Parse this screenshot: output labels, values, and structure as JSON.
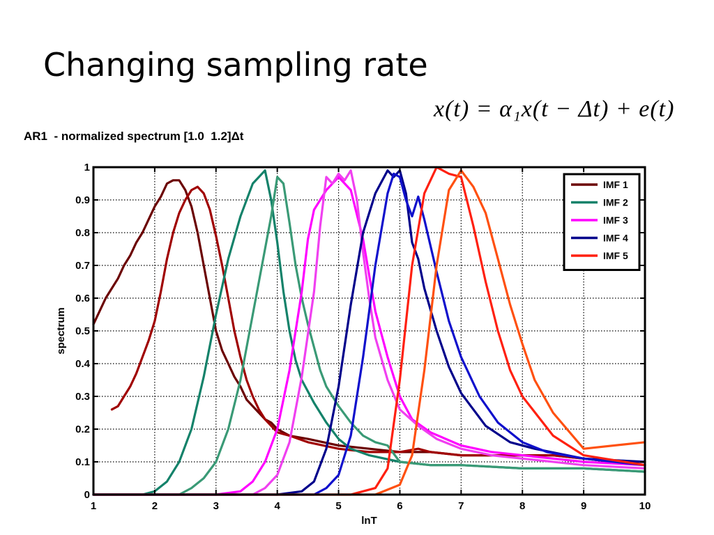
{
  "slide": {
    "title": "Changing sampling rate",
    "formula": "x(t) = α₁x(t − Δt) + e(t)",
    "subtitle": "AR1  - normalized spectrum [1.0  1.2]Δt"
  },
  "chart_data": {
    "type": "line",
    "title": "",
    "xlabel": "lnT",
    "ylabel": "spectrum",
    "xlim": [
      1,
      10
    ],
    "ylim": [
      0,
      1
    ],
    "xticks": [
      1,
      2,
      3,
      4,
      5,
      6,
      7,
      8,
      9,
      10
    ],
    "yticks": [
      0,
      0.1,
      0.2,
      0.3,
      0.4,
      0.5,
      0.6,
      0.7,
      0.8,
      0.9,
      1
    ],
    "grid": true,
    "legend_position": "top-right",
    "legend": [
      "IMF 1",
      "IMF 2",
      "IMF 3",
      "IMF 4",
      "IMF 5"
    ],
    "series": [
      {
        "name": "IMF 1",
        "color": "#6b0000",
        "legend": true,
        "x": [
          1.0,
          1.1,
          1.2,
          1.3,
          1.4,
          1.5,
          1.6,
          1.7,
          1.8,
          1.9,
          2.0,
          2.1,
          2.2,
          2.3,
          2.4,
          2.5,
          2.6,
          2.7,
          2.8,
          2.9,
          3.0,
          3.1,
          3.2,
          3.3,
          3.4,
          3.5,
          3.6,
          3.7,
          3.8,
          3.9,
          4.0,
          4.2,
          4.5,
          5.0,
          5.5,
          6.0,
          6.5,
          7.0,
          7.5,
          8.0,
          8.5,
          9.0,
          9.5,
          10.0
        ],
        "y": [
          0.52,
          0.56,
          0.6,
          0.63,
          0.66,
          0.7,
          0.73,
          0.77,
          0.8,
          0.84,
          0.88,
          0.91,
          0.95,
          0.96,
          0.96,
          0.93,
          0.88,
          0.8,
          0.7,
          0.6,
          0.5,
          0.44,
          0.4,
          0.36,
          0.33,
          0.29,
          0.27,
          0.25,
          0.23,
          0.22,
          0.2,
          0.18,
          0.17,
          0.15,
          0.14,
          0.13,
          0.13,
          0.12,
          0.12,
          0.12,
          0.12,
          0.11,
          0.1,
          0.1
        ]
      },
      {
        "name": "IMF 1",
        "color": "#a00000",
        "legend": false,
        "x": [
          1.3,
          1.4,
          1.5,
          1.6,
          1.7,
          1.8,
          1.9,
          2.0,
          2.1,
          2.2,
          2.3,
          2.4,
          2.5,
          2.6,
          2.7,
          2.8,
          2.9,
          3.0,
          3.1,
          3.2,
          3.3,
          3.4,
          3.5,
          3.6,
          3.7,
          3.8,
          3.9,
          4.0,
          4.2,
          4.5,
          5.0,
          5.5,
          6.0,
          6.3,
          6.5,
          7.0,
          7.5,
          8.0,
          8.5,
          9.0,
          9.5,
          10.0
        ],
        "y": [
          0.26,
          0.27,
          0.3,
          0.33,
          0.37,
          0.42,
          0.47,
          0.53,
          0.62,
          0.72,
          0.8,
          0.86,
          0.9,
          0.93,
          0.94,
          0.92,
          0.87,
          0.79,
          0.7,
          0.6,
          0.5,
          0.42,
          0.35,
          0.3,
          0.26,
          0.23,
          0.21,
          0.19,
          0.18,
          0.16,
          0.14,
          0.13,
          0.13,
          0.14,
          0.13,
          0.12,
          0.12,
          0.12,
          0.12,
          0.11,
          0.1,
          0.1
        ]
      },
      {
        "name": "IMF 2",
        "color": "#14826a",
        "legend": true,
        "x": [
          1.0,
          1.5,
          1.8,
          2.0,
          2.2,
          2.4,
          2.6,
          2.8,
          3.0,
          3.2,
          3.4,
          3.5,
          3.6,
          3.7,
          3.8,
          3.9,
          4.0,
          4.1,
          4.2,
          4.3,
          4.4,
          4.6,
          4.8,
          5.0,
          5.2,
          5.5,
          6.0,
          6.5,
          7.0,
          8.0,
          9.0,
          10.0
        ],
        "y": [
          0.0,
          0.0,
          0.0,
          0.01,
          0.04,
          0.1,
          0.2,
          0.36,
          0.55,
          0.72,
          0.85,
          0.9,
          0.95,
          0.97,
          0.99,
          0.9,
          0.77,
          0.62,
          0.5,
          0.41,
          0.35,
          0.28,
          0.22,
          0.17,
          0.14,
          0.12,
          0.1,
          0.09,
          0.09,
          0.08,
          0.08,
          0.07
        ]
      },
      {
        "name": "IMF 2",
        "color": "#3a9a76",
        "legend": false,
        "x": [
          1.0,
          2.0,
          2.4,
          2.6,
          2.8,
          3.0,
          3.2,
          3.4,
          3.6,
          3.8,
          3.9,
          4.0,
          4.1,
          4.2,
          4.3,
          4.4,
          4.5,
          4.6,
          4.7,
          4.8,
          5.0,
          5.2,
          5.4,
          5.6,
          5.8,
          6.0,
          6.5,
          7.0,
          8.0,
          9.0,
          10.0
        ],
        "y": [
          0.0,
          0.0,
          0.0,
          0.02,
          0.05,
          0.1,
          0.2,
          0.35,
          0.55,
          0.75,
          0.85,
          0.97,
          0.95,
          0.83,
          0.7,
          0.6,
          0.52,
          0.45,
          0.38,
          0.33,
          0.27,
          0.22,
          0.18,
          0.16,
          0.15,
          0.1,
          0.09,
          0.09,
          0.08,
          0.08,
          0.07
        ]
      },
      {
        "name": "IMF 3",
        "color": "#ff00ff",
        "legend": true,
        "x": [
          1.0,
          3.0,
          3.4,
          3.6,
          3.8,
          4.0,
          4.2,
          4.4,
          4.5,
          4.6,
          4.8,
          5.0,
          5.2,
          5.4,
          5.6,
          5.8,
          6.0,
          6.2,
          6.5,
          7.0,
          7.5,
          8.0,
          9.0,
          10.0
        ],
        "y": [
          0.0,
          0.0,
          0.01,
          0.04,
          0.1,
          0.2,
          0.38,
          0.62,
          0.78,
          0.87,
          0.93,
          0.97,
          0.93,
          0.78,
          0.56,
          0.42,
          0.3,
          0.23,
          0.19,
          0.15,
          0.13,
          0.12,
          0.1,
          0.09
        ]
      },
      {
        "name": "IMF 3",
        "color": "#f040f0",
        "legend": false,
        "x": [
          1.0,
          3.6,
          3.8,
          4.0,
          4.2,
          4.4,
          4.6,
          4.7,
          4.8,
          4.9,
          5.0,
          5.1,
          5.2,
          5.3,
          5.4,
          5.5,
          5.6,
          5.8,
          6.0,
          6.3,
          6.6,
          7.0,
          7.5,
          8.0,
          9.0,
          10.0
        ],
        "y": [
          0.0,
          0.0,
          0.02,
          0.06,
          0.16,
          0.36,
          0.62,
          0.82,
          0.97,
          0.95,
          0.98,
          0.96,
          0.99,
          0.9,
          0.74,
          0.6,
          0.48,
          0.35,
          0.26,
          0.21,
          0.17,
          0.14,
          0.12,
          0.11,
          0.09,
          0.08
        ]
      },
      {
        "name": "IMF 4",
        "color": "#00008b",
        "legend": true,
        "x": [
          1.0,
          4.0,
          4.4,
          4.6,
          4.8,
          5.0,
          5.2,
          5.4,
          5.6,
          5.8,
          5.9,
          6.0,
          6.1,
          6.2,
          6.3,
          6.4,
          6.6,
          6.8,
          7.0,
          7.4,
          7.8,
          8.2,
          9.0,
          10.0
        ],
        "y": [
          0.0,
          0.0,
          0.01,
          0.04,
          0.14,
          0.33,
          0.58,
          0.8,
          0.92,
          0.99,
          0.97,
          0.99,
          0.92,
          0.77,
          0.72,
          0.63,
          0.5,
          0.39,
          0.31,
          0.21,
          0.16,
          0.14,
          0.11,
          0.1
        ]
      },
      {
        "name": "IMF 4",
        "color": "#1010cc",
        "legend": false,
        "x": [
          1.0,
          4.6,
          4.8,
          5.0,
          5.2,
          5.4,
          5.6,
          5.8,
          5.9,
          6.0,
          6.1,
          6.2,
          6.3,
          6.4,
          6.6,
          6.8,
          7.0,
          7.3,
          7.6,
          8.0,
          8.4,
          9.0,
          10.0
        ],
        "y": [
          0.0,
          0.0,
          0.02,
          0.06,
          0.18,
          0.42,
          0.7,
          0.92,
          0.98,
          0.97,
          0.9,
          0.85,
          0.91,
          0.84,
          0.68,
          0.53,
          0.42,
          0.3,
          0.22,
          0.16,
          0.13,
          0.11,
          0.09
        ]
      },
      {
        "name": "IMF 5",
        "color": "#ff2010",
        "legend": true,
        "x": [
          1.0,
          5.2,
          5.6,
          5.8,
          6.0,
          6.2,
          6.4,
          6.6,
          6.8,
          7.0,
          7.2,
          7.4,
          7.6,
          7.8,
          8.0,
          8.5,
          9.0,
          10.0
        ],
        "y": [
          0.0,
          0.0,
          0.02,
          0.08,
          0.35,
          0.7,
          0.92,
          1.0,
          0.98,
          0.97,
          0.82,
          0.65,
          0.5,
          0.38,
          0.3,
          0.18,
          0.12,
          0.09
        ]
      },
      {
        "name": "IMF 5",
        "color": "#ff5010",
        "legend": false,
        "x": [
          1.0,
          5.6,
          6.0,
          6.2,
          6.4,
          6.6,
          6.8,
          7.0,
          7.2,
          7.4,
          7.6,
          7.8,
          8.0,
          8.2,
          8.5,
          9.0,
          10.0
        ],
        "y": [
          0.0,
          0.0,
          0.03,
          0.12,
          0.38,
          0.7,
          0.93,
          0.99,
          0.94,
          0.86,
          0.72,
          0.58,
          0.46,
          0.35,
          0.25,
          0.14,
          0.16
        ]
      }
    ]
  }
}
